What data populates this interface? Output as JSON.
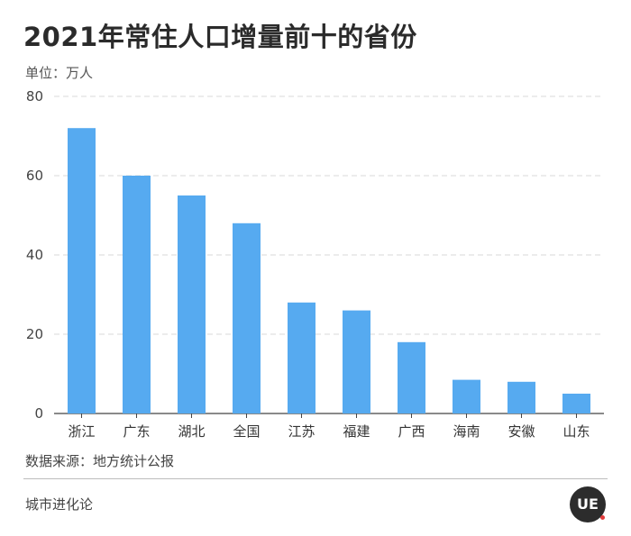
{
  "title": "2021年常住人口增量前十的省份",
  "unit_label": "单位：万人",
  "source": "数据来源：地方统计公报",
  "footer_brand": "城市进化论",
  "logo_text": "UE",
  "colors": {
    "bar": "#56aaf0",
    "grid": "#d9d9d9",
    "axis": "#444444",
    "logo_accent": "#e23a3a"
  },
  "chart_data": {
    "type": "bar",
    "categories": [
      "浙江",
      "广东",
      "湖北",
      "全国",
      "江苏",
      "福建",
      "广西",
      "海南",
      "安徽",
      "山东"
    ],
    "values": [
      72,
      60,
      55,
      48,
      28,
      26,
      18,
      8.5,
      8,
      5
    ],
    "ylim": [
      0,
      80
    ],
    "yticks": [
      0,
      20,
      40,
      60,
      80
    ],
    "grid": true,
    "xlabel": "",
    "ylabel": ""
  }
}
